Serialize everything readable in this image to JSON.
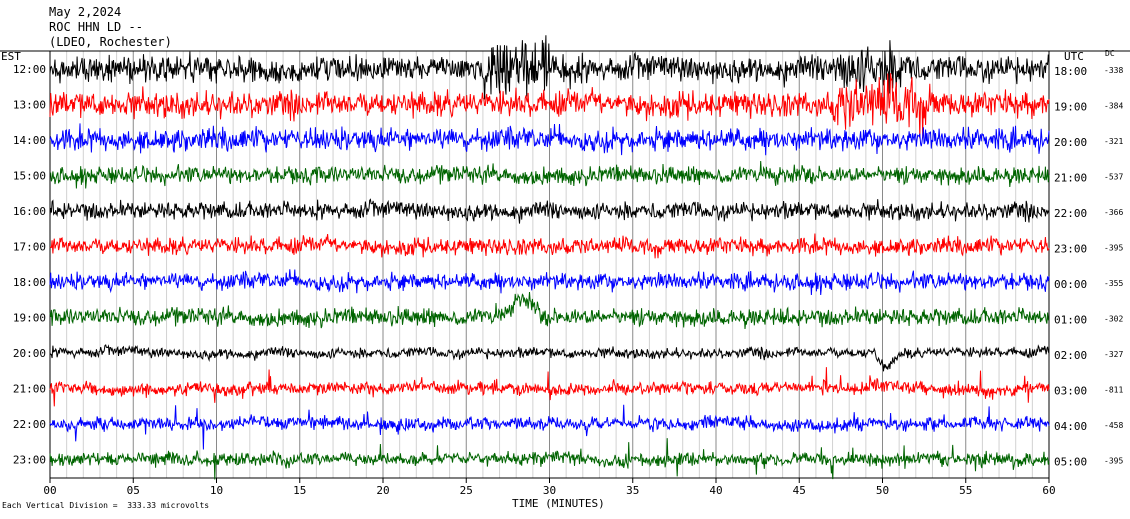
{
  "header": {
    "date": "May 2,2024",
    "station": "ROC HHN LD --",
    "network": "(LDEO, Rochester)"
  },
  "left_tz": "EST",
  "right_tz": "UTC",
  "dc_header": "DC",
  "footer": "Each Vertical Division =  333.33 microvolts",
  "chart_data": {
    "type": "line",
    "title": "",
    "xlabel": "TIME (MINUTES)",
    "ylabel": "",
    "xlim": [
      0,
      60
    ],
    "x_ticks": [
      "00",
      "05",
      "10",
      "15",
      "20",
      "25",
      "30",
      "35",
      "40",
      "45",
      "50",
      "55",
      "60"
    ],
    "vertical_division_microvolts": 333.33,
    "grid": "vertical lines every minute",
    "colors": [
      "#000000",
      "#ff0000",
      "#0000ff",
      "#006400"
    ],
    "traces": [
      {
        "local": "12:00",
        "utc": "18:00",
        "dc": "-338",
        "color": "#000000"
      },
      {
        "local": "13:00",
        "utc": "19:00",
        "dc": "-384",
        "color": "#ff0000"
      },
      {
        "local": "14:00",
        "utc": "20:00",
        "dc": "-321",
        "color": "#0000ff"
      },
      {
        "local": "15:00",
        "utc": "21:00",
        "dc": "-537",
        "color": "#006400"
      },
      {
        "local": "16:00",
        "utc": "22:00",
        "dc": "-366",
        "color": "#000000"
      },
      {
        "local": "17:00",
        "utc": "23:00",
        "dc": "-395",
        "color": "#ff0000"
      },
      {
        "local": "18:00",
        "utc": "00:00",
        "dc": "-355",
        "color": "#0000ff"
      },
      {
        "local": "19:00",
        "utc": "01:00",
        "dc": "-302",
        "color": "#006400"
      },
      {
        "local": "20:00",
        "utc": "02:00",
        "dc": "-327",
        "color": "#000000"
      },
      {
        "local": "21:00",
        "utc": "03:00",
        "dc": "-811",
        "color": "#ff0000"
      },
      {
        "local": "22:00",
        "utc": "04:00",
        "dc": "-458",
        "color": "#0000ff"
      },
      {
        "local": "23:00",
        "utc": "05:00",
        "dc": "-395",
        "color": "#006400"
      }
    ]
  }
}
